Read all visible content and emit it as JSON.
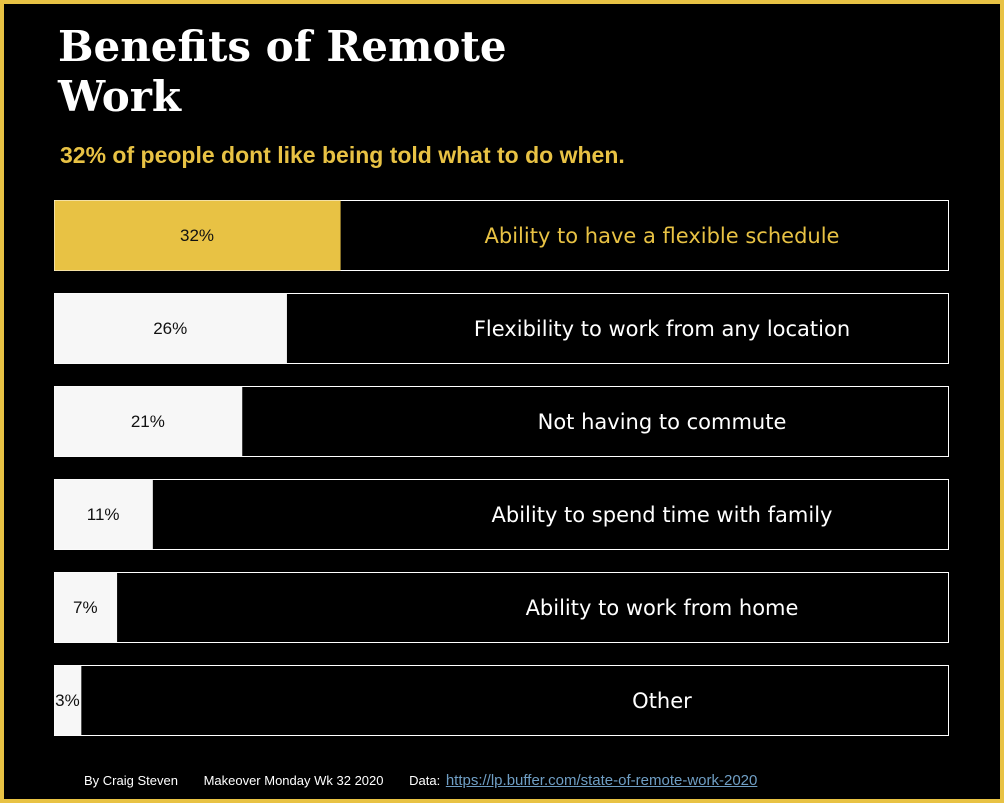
{
  "title": "Benefits of Remote Work",
  "subtitle": "32% of people dont like being told what to do when.",
  "colors": {
    "frame": "#e8c244",
    "background": "#000000",
    "highlight": "#e8c244",
    "bar": "#f7f7f7",
    "text": "#ffffff",
    "link": "#6f9ec4"
  },
  "chart_data": {
    "type": "bar",
    "orientation": "horizontal",
    "categories": [
      "Ability to have a flexible schedule",
      "Flexibility to work from any location",
      "Not having to commute",
      "Ability to spend time with family",
      "Ability to work from home",
      "Other"
    ],
    "values": [
      32,
      26,
      21,
      11,
      7,
      3
    ],
    "value_labels": [
      "32%",
      "26%",
      "21%",
      "11%",
      "7%",
      "3%"
    ],
    "highlight_index": 0,
    "xlim": [
      0,
      100
    ],
    "unit": "%",
    "grid": false,
    "legend": "none"
  },
  "footer": {
    "author": "By Craig Steven",
    "event": "Makeover Monday Wk 32 2020",
    "data_label": "Data:",
    "source_url": "https://lp.buffer.com/state-of-remote-work-2020"
  }
}
